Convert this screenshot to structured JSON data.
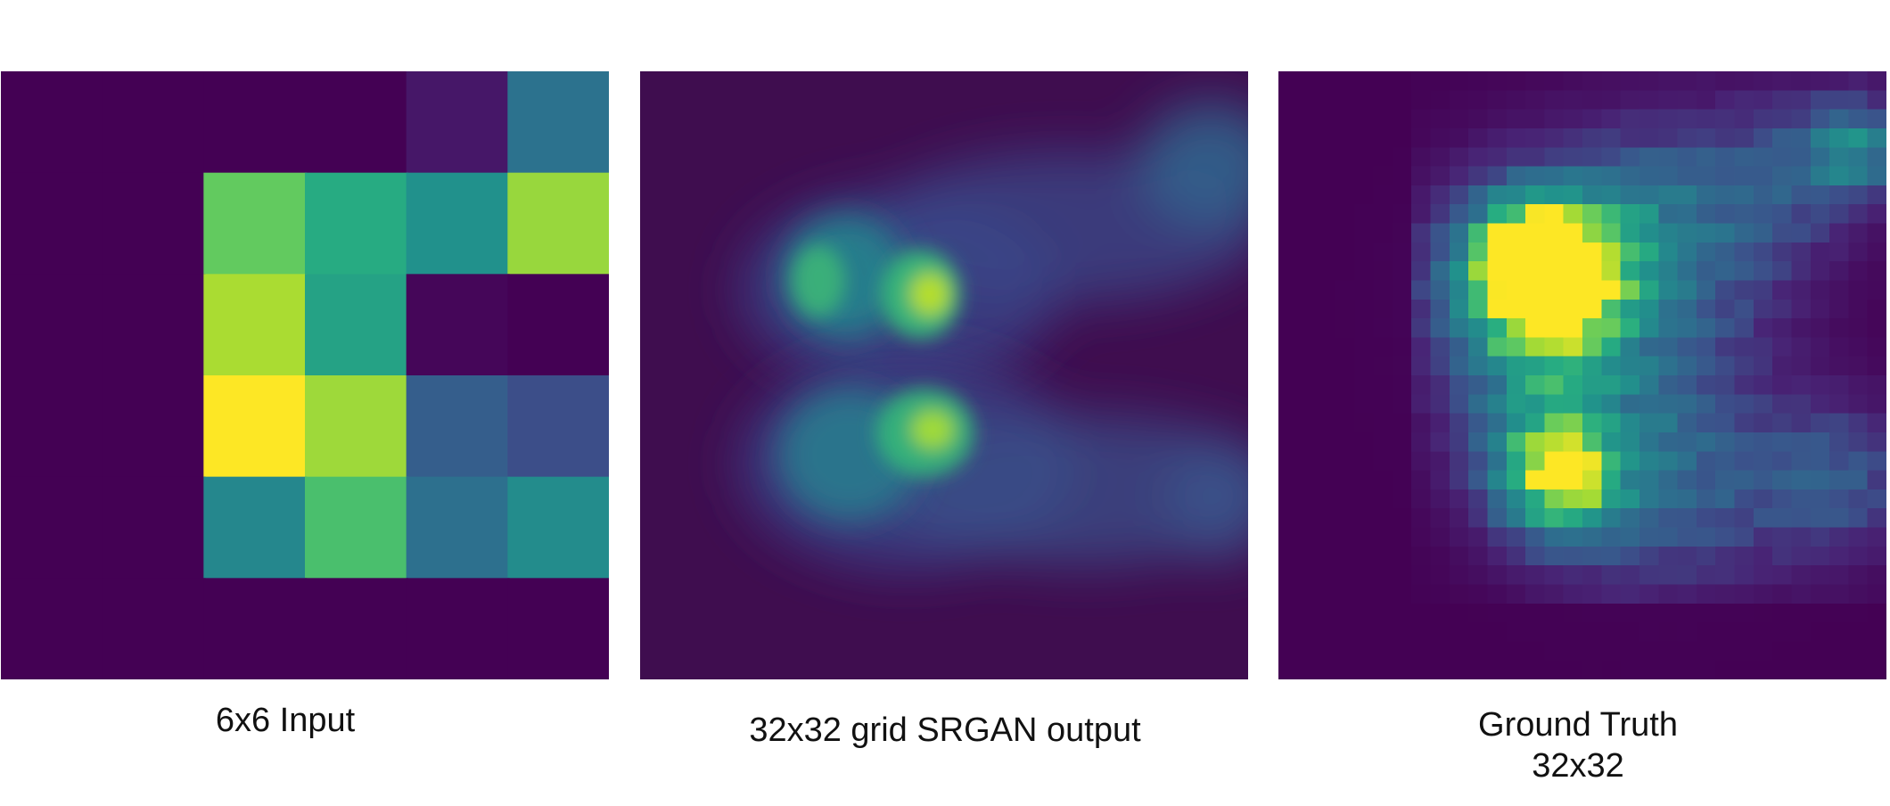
{
  "figure": {
    "background": "#3f0d4f",
    "colormap": "viridis",
    "panels": [
      {
        "id": "input",
        "caption_lines": [
          "6x6 Input"
        ]
      },
      {
        "id": "srgan",
        "caption_lines": [
          "32x32 grid SRGAN output"
        ]
      },
      {
        "id": "truth",
        "caption_lines": [
          "Ground Truth",
          "32x32"
        ]
      }
    ],
    "input_grid": [
      [
        0.0,
        0.0,
        0.0,
        0.0,
        0.08,
        0.38
      ],
      [
        0.0,
        0.0,
        0.76,
        0.62,
        0.5,
        0.85
      ],
      [
        0.0,
        0.0,
        0.88,
        0.58,
        0.02,
        0.0
      ],
      [
        0.0,
        0.0,
        1.0,
        0.86,
        0.3,
        0.24
      ],
      [
        0.0,
        0.0,
        0.46,
        0.71,
        0.37,
        0.48
      ],
      [
        0.0,
        0.0,
        0.0,
        0.0,
        0.0,
        0.0
      ]
    ]
  }
}
